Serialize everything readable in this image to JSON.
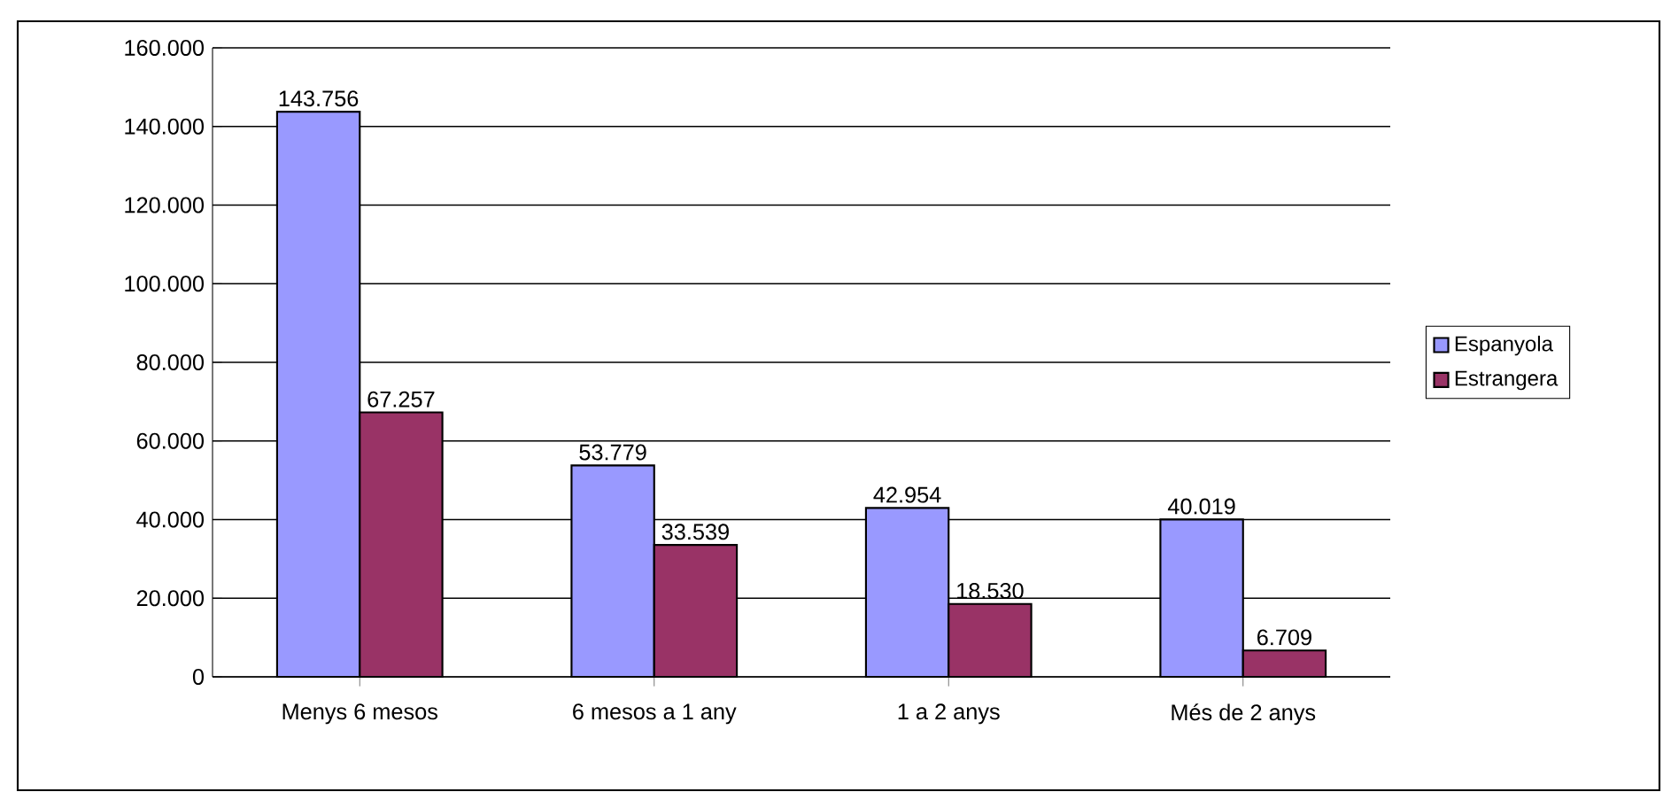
{
  "chart_data": {
    "type": "bar",
    "categories": [
      "Menys 6 mesos",
      "6 mesos a 1 any",
      "1 a 2 anys",
      "Més de 2 anys"
    ],
    "series": [
      {
        "name": "Espanyola",
        "color": "#9999ff",
        "values": [
          143756,
          53779,
          42954,
          40019
        ],
        "value_labels": [
          "143.756",
          "53.779",
          "42.954",
          "40.019"
        ]
      },
      {
        "name": "Estrangera",
        "color": "#993366",
        "values": [
          67257,
          33539,
          18530,
          6709
        ],
        "value_labels": [
          "67.257",
          "33.539",
          "18.530",
          "6.709"
        ]
      }
    ],
    "ylim": [
      0,
      160000
    ],
    "yticks": [
      {
        "value": 0,
        "label": "0"
      },
      {
        "value": 20000,
        "label": "20.000"
      },
      {
        "value": 40000,
        "label": "40.000"
      },
      {
        "value": 60000,
        "label": "60.000"
      },
      {
        "value": 80000,
        "label": "80.000"
      },
      {
        "value": 100000,
        "label": "100.000"
      },
      {
        "value": 120000,
        "label": "120.000"
      },
      {
        "value": 140000,
        "label": "140.000"
      },
      {
        "value": 160000,
        "label": "160.000"
      }
    ],
    "grid": "y",
    "legend": "right"
  }
}
